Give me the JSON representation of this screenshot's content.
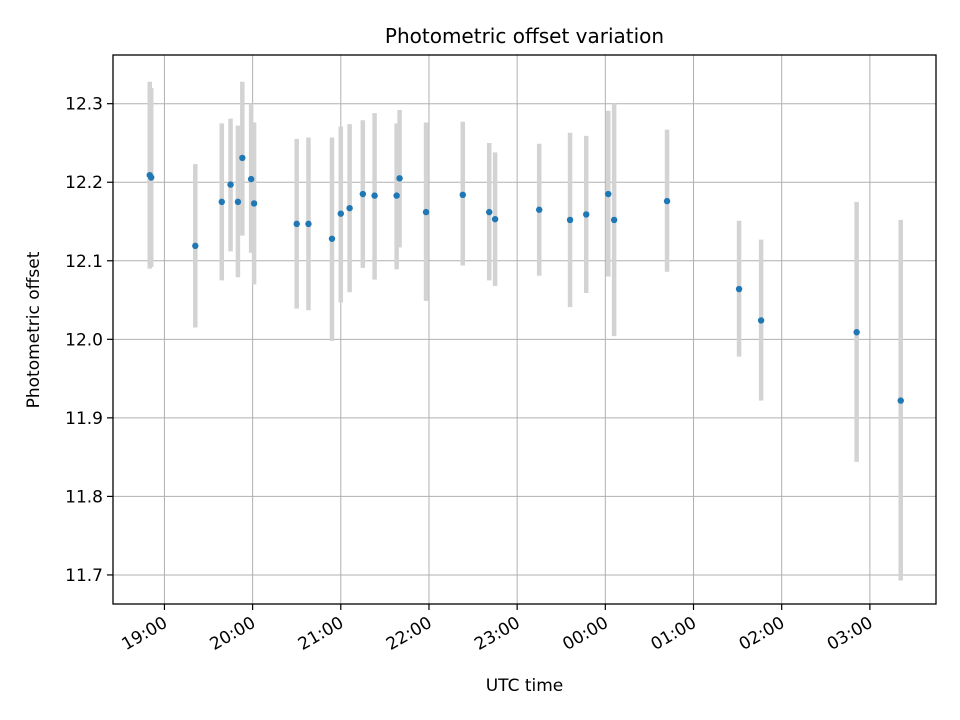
{
  "chart_data": {
    "type": "scatter",
    "title": "Photometric offset variation",
    "xlabel": "UTC time",
    "ylabel": "Photometric offset",
    "x_axis_type": "time",
    "xlim": [
      "18:25",
      "03:45"
    ],
    "ylim": [
      11.663,
      12.362
    ],
    "grid": true,
    "x_ticks": [
      "19:00",
      "20:00",
      "21:00",
      "22:00",
      "23:00",
      "00:00",
      "01:00",
      "02:00",
      "03:00"
    ],
    "y_ticks": [
      "11.7",
      "11.8",
      "11.9",
      "12.0",
      "12.1",
      "12.2",
      "12.3"
    ],
    "marker_color": "#1f77b4",
    "errorbar_color": "#d3d3d3",
    "series": [
      {
        "points": [
          {
            "time": "18:50",
            "y": 12.209,
            "ylow": 12.09,
            "yhigh": 12.328
          },
          {
            "time": "18:51",
            "y": 12.206,
            "ylow": 12.092,
            "yhigh": 12.32
          },
          {
            "time": "19:21",
            "y": 12.119,
            "ylow": 12.015,
            "yhigh": 12.223
          },
          {
            "time": "19:39",
            "y": 12.175,
            "ylow": 12.075,
            "yhigh": 12.275
          },
          {
            "time": "19:45",
            "y": 12.197,
            "ylow": 12.112,
            "yhigh": 12.281
          },
          {
            "time": "19:50",
            "y": 12.175,
            "ylow": 12.079,
            "yhigh": 12.272
          },
          {
            "time": "19:53",
            "y": 12.231,
            "ylow": 12.132,
            "yhigh": 12.328
          },
          {
            "time": "19:59",
            "y": 12.204,
            "ylow": 12.11,
            "yhigh": 12.3
          },
          {
            "time": "20:01",
            "y": 12.173,
            "ylow": 12.07,
            "yhigh": 12.276
          },
          {
            "time": "20:30",
            "y": 12.147,
            "ylow": 12.039,
            "yhigh": 12.255
          },
          {
            "time": "20:38",
            "y": 12.147,
            "ylow": 12.037,
            "yhigh": 12.257
          },
          {
            "time": "20:54",
            "y": 12.128,
            "ylow": 11.998,
            "yhigh": 12.257
          },
          {
            "time": "21:00",
            "y": 12.16,
            "ylow": 12.047,
            "yhigh": 12.271
          },
          {
            "time": "21:06",
            "y": 12.167,
            "ylow": 12.06,
            "yhigh": 12.274
          },
          {
            "time": "21:15",
            "y": 12.185,
            "ylow": 12.091,
            "yhigh": 12.279
          },
          {
            "time": "21:23",
            "y": 12.183,
            "ylow": 12.076,
            "yhigh": 12.288
          },
          {
            "time": "21:38",
            "y": 12.183,
            "ylow": 12.089,
            "yhigh": 12.275
          },
          {
            "time": "21:40",
            "y": 12.205,
            "ylow": 12.117,
            "yhigh": 12.292
          },
          {
            "time": "21:58",
            "y": 12.162,
            "ylow": 12.049,
            "yhigh": 12.276
          },
          {
            "time": "22:23",
            "y": 12.184,
            "ylow": 12.094,
            "yhigh": 12.277
          },
          {
            "time": "22:41",
            "y": 12.162,
            "ylow": 12.075,
            "yhigh": 12.25
          },
          {
            "time": "22:45",
            "y": 12.153,
            "ylow": 12.068,
            "yhigh": 12.238
          },
          {
            "time": "23:15",
            "y": 12.165,
            "ylow": 12.081,
            "yhigh": 12.249
          },
          {
            "time": "23:36",
            "y": 12.152,
            "ylow": 12.041,
            "yhigh": 12.263
          },
          {
            "time": "23:47",
            "y": 12.159,
            "ylow": 12.059,
            "yhigh": 12.259
          },
          {
            "time": "00:02",
            "y": 12.185,
            "ylow": 12.08,
            "yhigh": 12.291
          },
          {
            "time": "00:06",
            "y": 12.152,
            "ylow": 12.004,
            "yhigh": 12.3
          },
          {
            "time": "00:42",
            "y": 12.176,
            "ylow": 12.086,
            "yhigh": 12.267
          },
          {
            "time": "01:31",
            "y": 12.064,
            "ylow": 11.978,
            "yhigh": 12.151
          },
          {
            "time": "01:46",
            "y": 12.024,
            "ylow": 11.922,
            "yhigh": 12.127
          },
          {
            "time": "02:51",
            "y": 12.009,
            "ylow": 11.844,
            "yhigh": 12.175
          },
          {
            "time": "03:21",
            "y": 11.922,
            "ylow": 11.693,
            "yhigh": 12.152
          }
        ]
      }
    ]
  }
}
